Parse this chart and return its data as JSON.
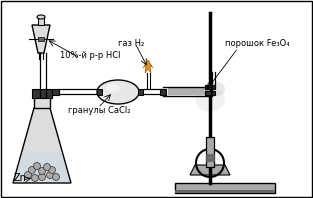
{
  "background_color": "#ffffff",
  "border_color": "#000000",
  "labels": {
    "gas_h2": "газ H₂",
    "hcl": "10%-й р-р HCl",
    "cacl2": "гранулы CaCl₂",
    "zn": "Zn",
    "fe3o4": "порошок Fe₃O₄"
  },
  "figsize": [
    3.13,
    1.98
  ],
  "dpi": 100
}
